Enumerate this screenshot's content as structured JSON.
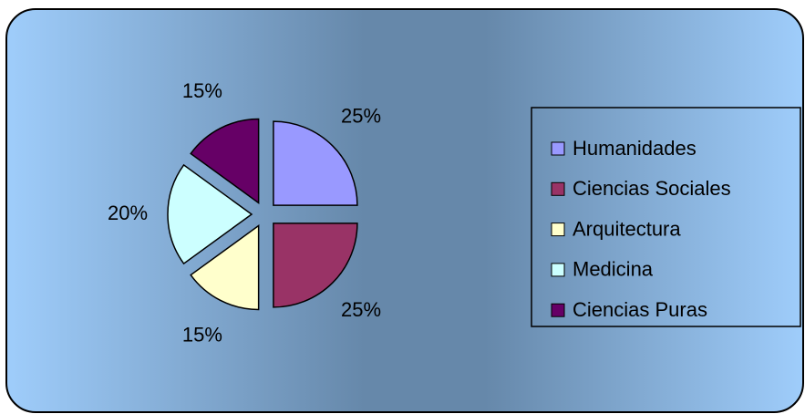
{
  "chart_data": {
    "type": "pie",
    "categories": [
      "Humanidades",
      "Ciencias Sociales",
      "Arquitectura",
      "Medicina",
      "Ciencias Puras"
    ],
    "values": [
      25,
      25,
      15,
      20,
      15
    ],
    "value_labels": [
      "25%",
      "25%",
      "15%",
      "20%",
      "15%"
    ],
    "colors": [
      "#9999ff",
      "#993366",
      "#ffffcc",
      "#ccffff",
      "#660066"
    ],
    "legend": "right"
  }
}
